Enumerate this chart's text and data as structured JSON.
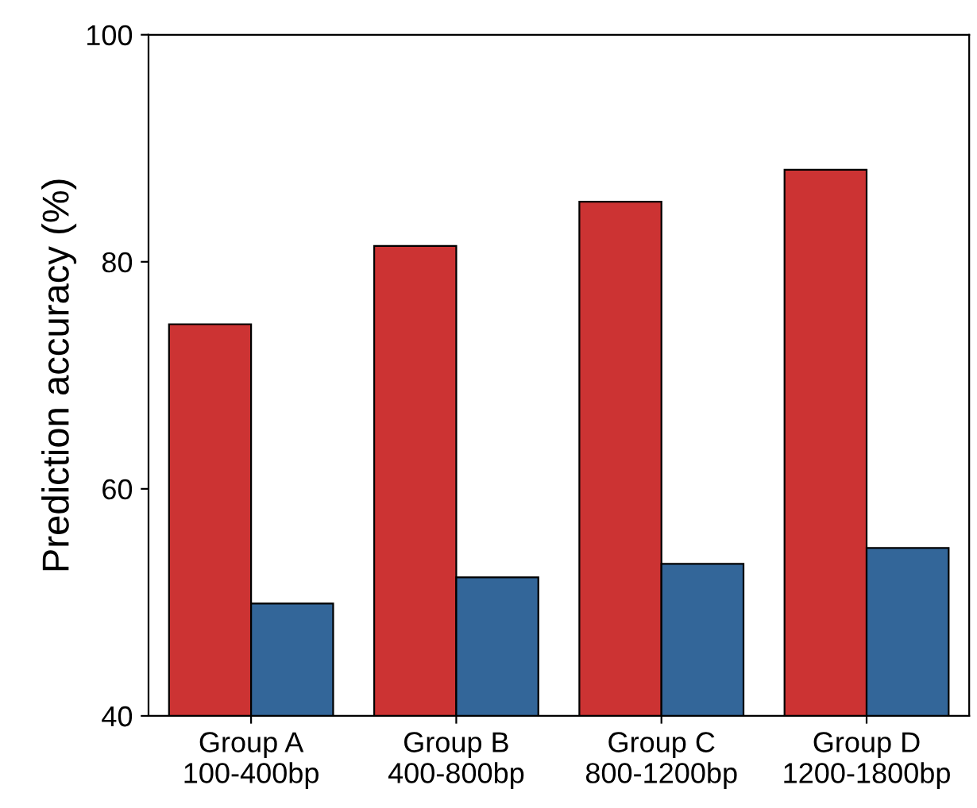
{
  "chart_data": {
    "type": "bar",
    "ylabel": "Prediction accuracy (%)",
    "categories": [
      "Group A\n100-400bp",
      "Group B\n400-800bp",
      "Group C\n800-1200bp",
      "Group D\n1200-1800bp"
    ],
    "series": [
      {
        "color": "#cc3333",
        "values": [
          74.5,
          81.4,
          85.3,
          88.1
        ]
      },
      {
        "color": "#336699",
        "values": [
          49.9,
          52.2,
          53.4,
          54.8
        ]
      }
    ],
    "ylim": [
      40,
      100
    ],
    "yticks": [
      40,
      60,
      80,
      100
    ],
    "grid": false
  }
}
